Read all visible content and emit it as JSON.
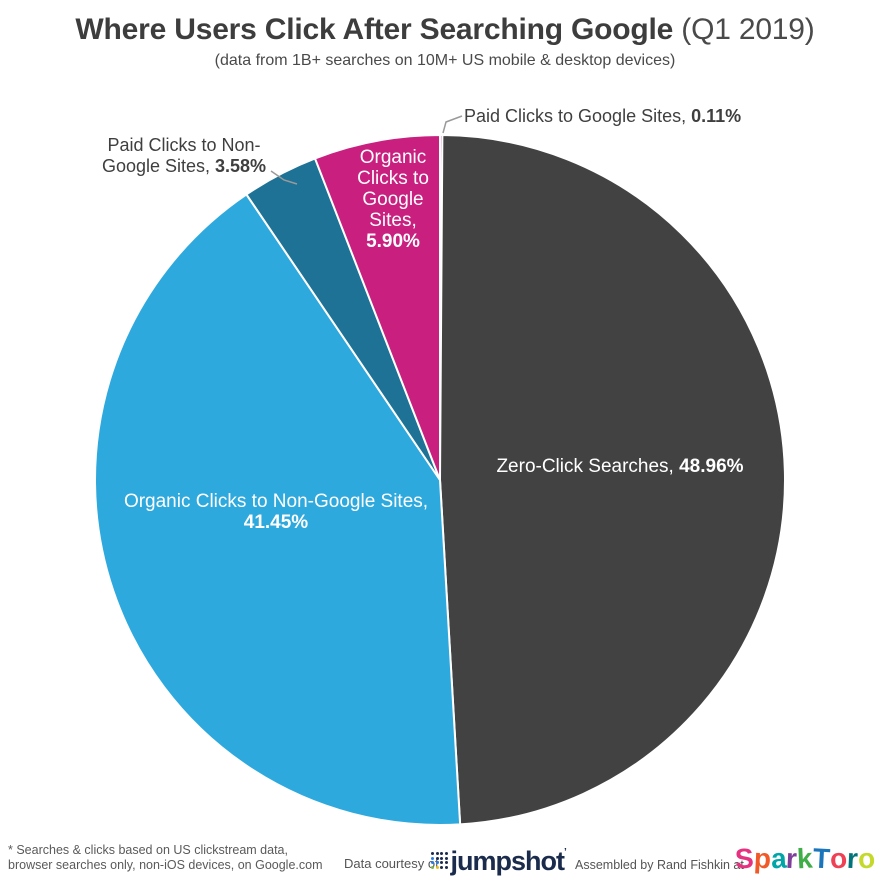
{
  "header": {
    "title_bold": "Where Users Click After Searching Google",
    "title_light": " (Q1 2019)",
    "subtitle": "(data from 1B+ searches on 10M+ US mobile & desktop devices)"
  },
  "chart_data": {
    "type": "pie",
    "title": "Where Users Click After Searching Google (Q1 2019)",
    "start_angle_deg": 0,
    "direction": "clockwise",
    "legend_position": "labels-on-chart",
    "slices": [
      {
        "label": "Paid Clicks to Google Sites",
        "value": 0.11,
        "color": "#c92080"
      },
      {
        "label": "Zero-Click Searches",
        "value": 48.96,
        "color": "#424242"
      },
      {
        "label": "Organic Clicks to Non-Google Sites",
        "value": 41.45,
        "color": "#2ea9de"
      },
      {
        "label": "Paid Clicks to Non-Google Sites",
        "value": 3.58,
        "color": "#1d7296"
      },
      {
        "label": "Organic Clicks to Google Sites",
        "value": 5.9,
        "color": "#c92080"
      }
    ]
  },
  "labels": {
    "paid_google": {
      "text": "Paid Clicks to Google Sites, ",
      "value": "0.11%"
    },
    "paid_non_google": {
      "line1": "Paid Clicks to Non-",
      "line2": "Google Sites, ",
      "value": "3.58%"
    },
    "organic_google": {
      "text": "Organic Clicks to Google Sites, ",
      "value": "5.90%"
    },
    "zero_click": {
      "text": "Zero-Click Searches, ",
      "value": "48.96%"
    },
    "organic_non_google": {
      "text": "Organic Clicks to Non-Google Sites, ",
      "value": "41.45%"
    }
  },
  "footer": {
    "footnote_line1": "* Searches & clicks based on US clickstream data,",
    "footnote_line2": "browser searches only, non-iOS devices, on Google.com",
    "data_courtesy": "Data courtesy of",
    "jumpshot_wordmark": "jumpshot",
    "jumpshot_tm": "’",
    "assembled_by": "Assembled by Rand Fishkin at",
    "sparktoro_letters": [
      {
        "ch": "S",
        "color": "#e5317f"
      },
      {
        "ch": "p",
        "color": "#f05a28"
      },
      {
        "ch": "a",
        "color": "#00a5a8"
      },
      {
        "ch": "r",
        "color": "#7d3f98"
      },
      {
        "ch": "k",
        "color": "#3fae49"
      },
      {
        "ch": "T",
        "color": "#1b75bb"
      },
      {
        "ch": "o",
        "color": "#ef4156"
      },
      {
        "ch": "r",
        "color": "#00747a"
      },
      {
        "ch": "o",
        "color": "#c5d92d"
      }
    ]
  }
}
